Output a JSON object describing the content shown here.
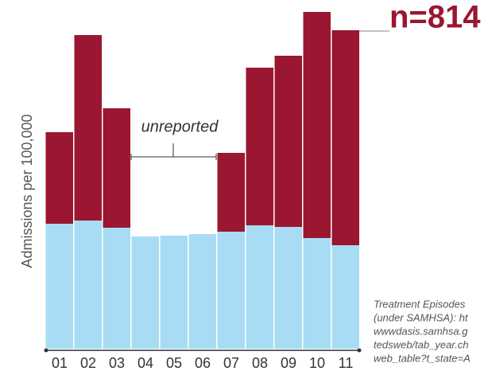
{
  "chart_data": {
    "type": "bar",
    "stacked": true,
    "y_label": "Admissions per 100,000",
    "categories": [
      "01",
      "02",
      "03",
      "04",
      "05",
      "06",
      "07",
      "08",
      "09",
      "10",
      "11"
    ],
    "series": [
      {
        "color": "#a8dcf5",
        "values": [
          157,
          161,
          152,
          141,
          142,
          144,
          147,
          155,
          153,
          139,
          130
        ]
      },
      {
        "color": "#9b1630",
        "values": [
          115,
          233,
          150,
          null,
          null,
          null,
          99,
          198,
          215,
          284,
          270
        ]
      }
    ],
    "ylim": [
      0,
      423
    ],
    "n_label": "n=814",
    "annotation": "unreported",
    "source": [
      "Treatment Episodes",
      "(under SAMHSA): ht",
      "wwwdasis.samhsa.g",
      "tedsweb/tab_year.ch",
      "web_table?t_state=A"
    ]
  }
}
